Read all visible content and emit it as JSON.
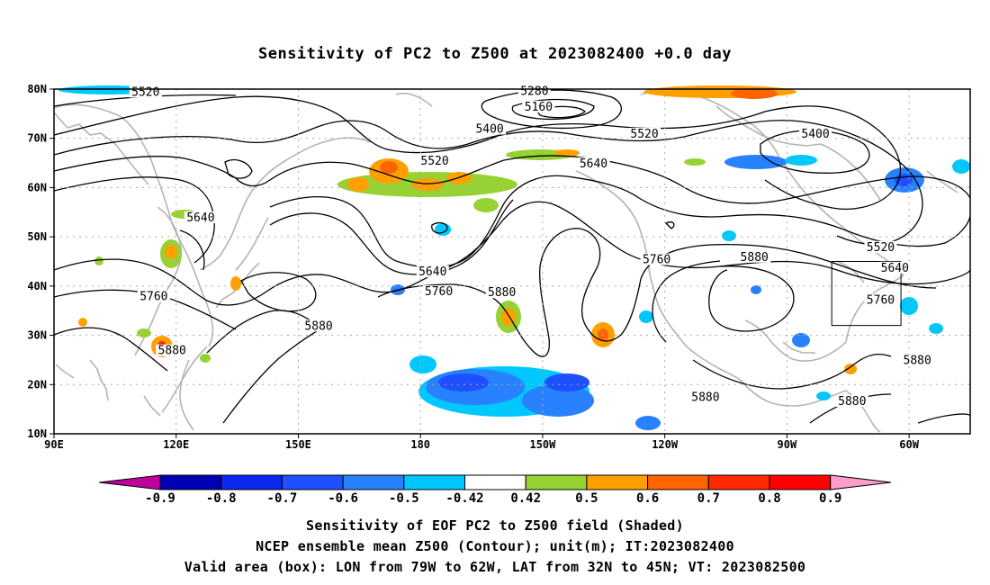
{
  "title": "Sensitivity of PC2 to Z500 at 2023082400 +0.0 day",
  "lat_labels": [
    "80N",
    "70N",
    "60N",
    "50N",
    "40N",
    "30N",
    "20N",
    "10N"
  ],
  "lon_labels": [
    "90E",
    "120E",
    "150E",
    "180",
    "150W",
    "120W",
    "90W",
    "60W"
  ],
  "contour_labels": [
    {
      "text": "5520",
      "lon": 112.5,
      "lat": 79.0
    },
    {
      "text": "5280",
      "lon": -152,
      "lat": 79.2
    },
    {
      "text": "5160",
      "lon": -151,
      "lat": 76.0
    },
    {
      "text": "5400",
      "lon": -163,
      "lat": 71.5
    },
    {
      "text": "5520",
      "lon": -125,
      "lat": 70.5
    },
    {
      "text": "5400",
      "lon": -83,
      "lat": 70.5
    },
    {
      "text": "5520",
      "lon": -176.5,
      "lat": 65.0
    },
    {
      "text": "5640",
      "lon": -137.5,
      "lat": 64.5
    },
    {
      "text": "5640",
      "lon": 126,
      "lat": 53.5
    },
    {
      "text": "5520",
      "lon": -67,
      "lat": 47.5
    },
    {
      "text": "5640",
      "lon": -63.5,
      "lat": 43.3
    },
    {
      "text": "5640",
      "lon": -177,
      "lat": 42.5
    },
    {
      "text": "5880",
      "lon": -98,
      "lat": 45.5
    },
    {
      "text": "5760",
      "lon": -122,
      "lat": 45.0
    },
    {
      "text": "5760",
      "lon": 114.5,
      "lat": 37.5
    },
    {
      "text": "5760",
      "lon": -175.5,
      "lat": 38.5
    },
    {
      "text": "5880",
      "lon": -160,
      "lat": 38.3
    },
    {
      "text": "5760",
      "lon": -67,
      "lat": 36.8
    },
    {
      "text": "5880",
      "lon": 155,
      "lat": 31.5
    },
    {
      "text": "5880",
      "lon": 119,
      "lat": 26.5
    },
    {
      "text": "5880",
      "lon": -58,
      "lat": 24.5
    },
    {
      "text": "5880",
      "lon": -110,
      "lat": 17.0
    },
    {
      "text": "5880",
      "lon": -74,
      "lat": 16.2
    }
  ],
  "colorbar": {
    "levels": [
      "-0.9",
      "-0.8",
      "-0.7",
      "-0.6",
      "-0.5",
      "-0.42",
      "0.42",
      "0.5",
      "0.6",
      "0.7",
      "0.8",
      "0.9"
    ],
    "colors": [
      "#0000b4",
      "#0a28f0",
      "#1e50ff",
      "#2882ff",
      "#00c8ff",
      "#ffffff",
      "#96d232",
      "#ffa000",
      "#ff6400",
      "#ff2800",
      "#ff0000"
    ],
    "low_color": "#c0009c",
    "high_color": "#ff9ccc"
  },
  "valid_box": {
    "lon_west": -79,
    "lon_east": -62,
    "lat_south": 32,
    "lat_north": 45
  },
  "colors": {
    "coast": "#b4b4b4",
    "contour": "#000000",
    "grid": "#aaaaaa"
  },
  "captions": {
    "line1": "Sensitivity of EOF PC2 to Z500 field (Shaded)",
    "line2": "NCEP ensemble mean Z500 (Contour); unit(m); IT:2023082400",
    "line3": "Valid area (box): LON from 79W to 62W, LAT from 32N to 45N; VT: 2023082500"
  }
}
